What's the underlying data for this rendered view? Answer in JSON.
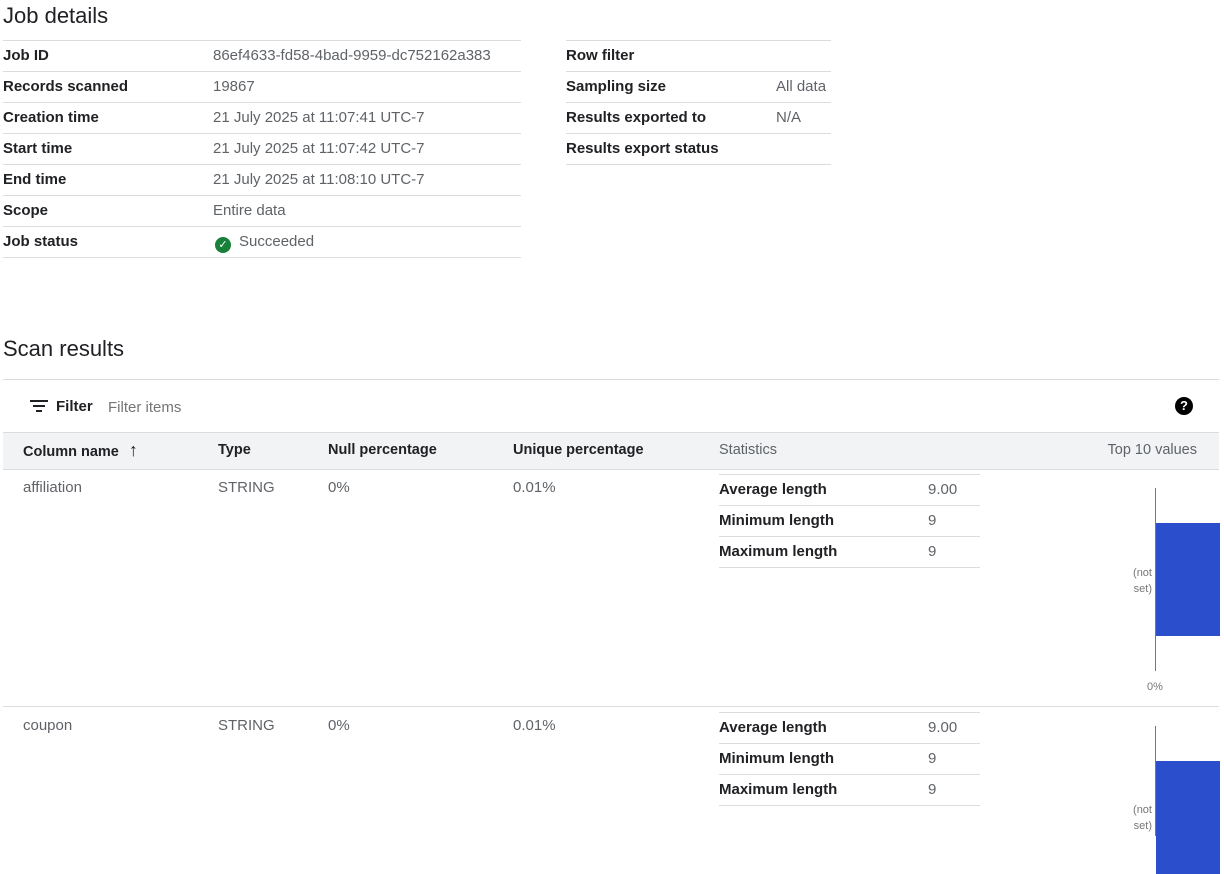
{
  "job_details": {
    "title": "Job details",
    "left": [
      {
        "label": "Job ID",
        "value": "86ef4633-fd58-4bad-9959-dc752162a383"
      },
      {
        "label": "Records scanned",
        "value": "19867"
      },
      {
        "label": "Creation time",
        "value": "21 July 2025 at 11:07:41 UTC-7"
      },
      {
        "label": "Start time",
        "value": "21 July 2025 at 11:07:42 UTC-7"
      },
      {
        "label": "End time",
        "value": "21 July 2025 at 11:08:10 UTC-7"
      },
      {
        "label": "Scope",
        "value": "Entire data"
      },
      {
        "label": "Job status",
        "value": "Succeeded",
        "icon": "check-circle-icon",
        "color": "#188038"
      }
    ],
    "right": [
      {
        "label": "Row filter",
        "value": ""
      },
      {
        "label": "Sampling size",
        "value": "All data"
      },
      {
        "label": "Results exported to",
        "value": "N/A"
      },
      {
        "label": "Results export status",
        "value": ""
      }
    ]
  },
  "scan_results": {
    "title": "Scan results",
    "filter_label": "Filter",
    "filter_placeholder": "Filter items",
    "columns": [
      "Column name",
      "Type",
      "Null percentage",
      "Unique percentage",
      "Statistics",
      "Top 10 values"
    ],
    "bar_color": "#2b4fcc",
    "rows": [
      {
        "name": "affiliation",
        "type": "STRING",
        "null_pct": "0%",
        "unique_pct": "0.01%",
        "stats": [
          {
            "label": "Average length",
            "value": "9.00"
          },
          {
            "label": "Minimum length",
            "value": "9"
          },
          {
            "label": "Maximum length",
            "value": "9"
          }
        ],
        "top_values": [
          {
            "label": "(not set)",
            "pct": 100
          }
        ],
        "axis_label": "0%"
      },
      {
        "name": "coupon",
        "type": "STRING",
        "null_pct": "0%",
        "unique_pct": "0.01%",
        "stats": [
          {
            "label": "Average length",
            "value": "9.00"
          },
          {
            "label": "Minimum length",
            "value": "9"
          },
          {
            "label": "Maximum length",
            "value": "9"
          }
        ],
        "top_values": [
          {
            "label": "(not set)",
            "pct": 100
          }
        ]
      }
    ]
  }
}
